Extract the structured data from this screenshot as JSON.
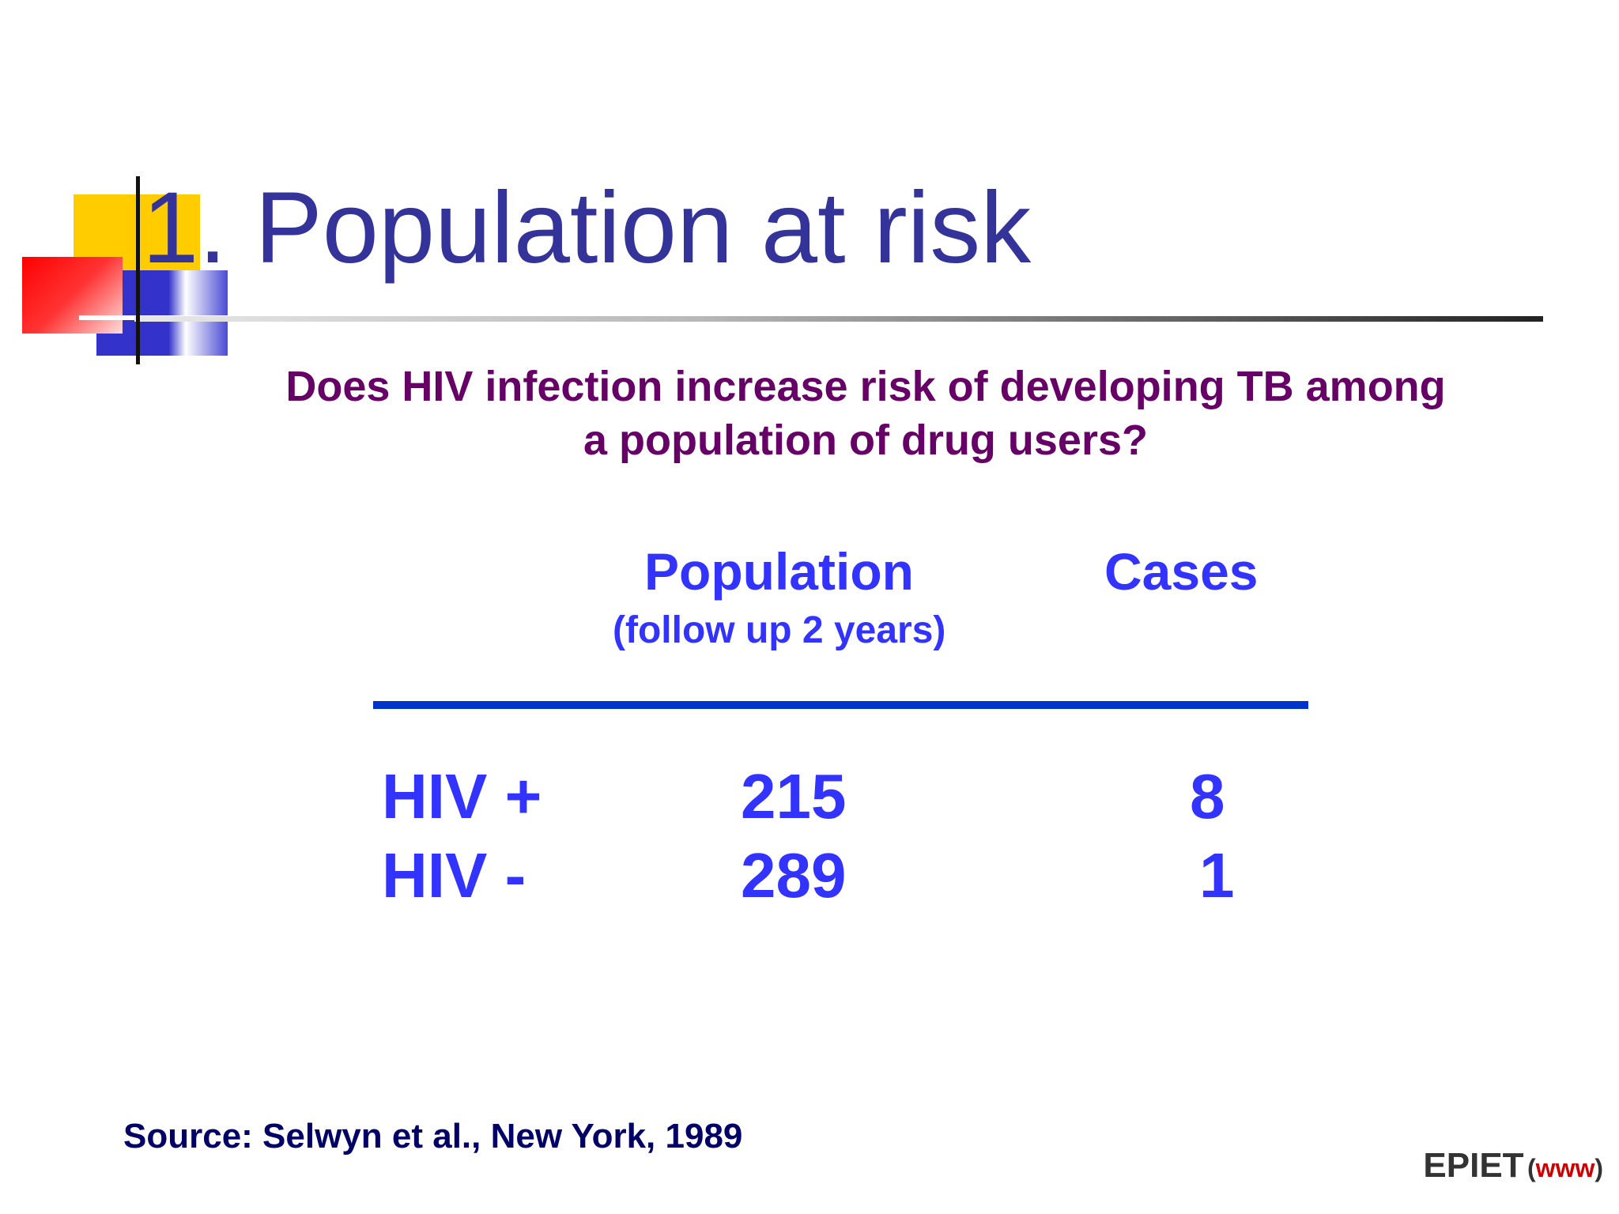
{
  "slide": {
    "title": "1. Population at risk",
    "question": "Does HIV infection increase risk of developing TB among a population of drug users?",
    "table": {
      "header_population": "Population",
      "header_population_sub": "(follow up 2 years)",
      "header_cases": "Cases",
      "rows": [
        {
          "label": "HIV +",
          "population": "215",
          "cases": "8"
        },
        {
          "label": "HIV -",
          "population": "289",
          "cases": "1"
        }
      ]
    },
    "source": "Source: Selwyn et al., New York, 1989",
    "footer": {
      "brand": "EPIET",
      "paren_open": "(",
      "link": "www",
      "paren_close": ")"
    }
  },
  "colors": {
    "title": "#333399",
    "question": "#660066",
    "table_text": "#3333ff",
    "table_rule": "#0033cc",
    "source": "#000066",
    "link": "#cc0000"
  }
}
